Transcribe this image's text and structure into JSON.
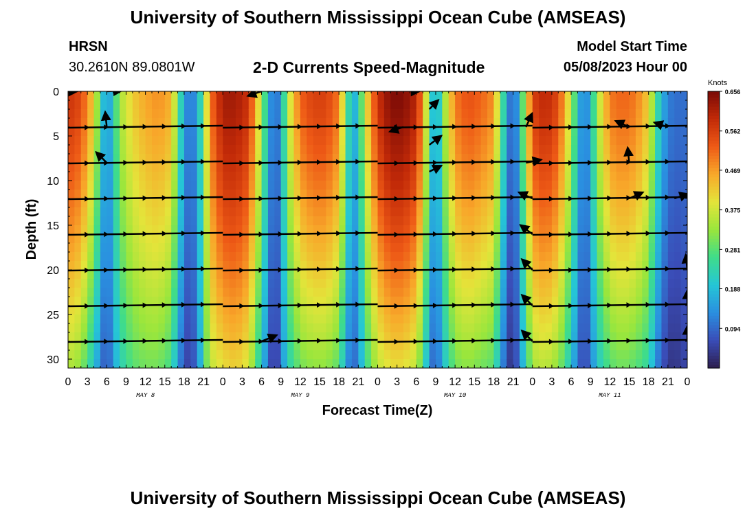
{
  "header": {
    "title": "University of Southern Mississippi Ocean Cube (AMSEAS)",
    "station": "HRSN",
    "coords": "30.2610N  89.0801W",
    "subtitle": "2-D Currents Speed-Magnitude",
    "model_start_label": "Model Start Time",
    "model_start_value": "05/08/2023 Hour 00",
    "footer_title": "University of Southern Mississippi Ocean Cube (AMSEAS)"
  },
  "chart_data": {
    "type": "heatmap",
    "title": "2-D Currents Speed-Magnitude",
    "xlabel": "Forecast Time(Z)",
    "ylabel": "Depth (ft)",
    "xlim": [
      0,
      96
    ],
    "ylim": [
      31,
      0
    ],
    "x_ticks": [
      0,
      3,
      6,
      9,
      12,
      15,
      18,
      21,
      24,
      27,
      30,
      33,
      36,
      39,
      42,
      45,
      48,
      51,
      54,
      57,
      60,
      63,
      66,
      69,
      72,
      75,
      78,
      81,
      84,
      87,
      90,
      93,
      96
    ],
    "x_tick_labels": [
      "0",
      "3",
      "6",
      "9",
      "12",
      "15",
      "18",
      "21",
      "0",
      "3",
      "6",
      "9",
      "12",
      "15",
      "18",
      "21",
      "0",
      "3",
      "6",
      "9",
      "12",
      "15",
      "18",
      "21",
      "0",
      "3",
      "6",
      "9",
      "12",
      "15",
      "18",
      "21",
      "0"
    ],
    "day_labels": [
      {
        "hour": 12,
        "label": "MAY 8"
      },
      {
        "hour": 36,
        "label": "MAY 9"
      },
      {
        "hour": 60,
        "label": "MAY 10"
      },
      {
        "hour": 84,
        "label": "MAY 11"
      }
    ],
    "y_ticks": [
      0,
      5,
      10,
      15,
      20,
      25,
      30
    ],
    "colorbar": {
      "label": "Knots",
      "min": 0.0,
      "max": 0.656,
      "ticks": [
        0.656,
        0.562,
        0.469,
        0.375,
        0.281,
        0.188,
        0.094
      ],
      "colors": [
        "#2d1e4e",
        "#3a4db8",
        "#2a8fe0",
        "#25c6d6",
        "#3fdc8a",
        "#9ae63c",
        "#e4e43a",
        "#f8a82a",
        "#ee5a16",
        "#c22a08",
        "#7a0a06"
      ]
    },
    "speed_profile": {
      "hours": [
        0,
        2,
        4,
        5,
        6,
        7,
        8,
        10,
        12,
        14,
        16,
        17,
        18,
        19,
        20,
        21,
        22,
        24,
        26,
        28,
        30,
        31,
        32,
        33,
        34,
        36,
        38,
        40,
        42,
        43,
        44,
        45,
        46,
        48,
        50,
        52,
        54,
        55,
        56,
        57,
        58,
        60,
        62,
        64,
        66,
        67,
        68,
        69,
        70,
        72,
        74,
        76,
        78,
        79,
        80,
        81,
        82,
        84,
        86,
        88,
        90,
        91,
        92,
        93,
        94,
        96
      ],
      "surface_knots": [
        0.58,
        0.55,
        0.42,
        0.25,
        0.12,
        0.22,
        0.34,
        0.42,
        0.46,
        0.48,
        0.45,
        0.3,
        0.15,
        0.1,
        0.15,
        0.3,
        0.5,
        0.62,
        0.62,
        0.58,
        0.35,
        0.18,
        0.08,
        0.15,
        0.35,
        0.52,
        0.56,
        0.56,
        0.5,
        0.32,
        0.16,
        0.2,
        0.38,
        0.58,
        0.65,
        0.65,
        0.6,
        0.48,
        0.28,
        0.12,
        0.3,
        0.5,
        0.54,
        0.52,
        0.48,
        0.32,
        0.16,
        0.06,
        0.2,
        0.56,
        0.6,
        0.55,
        0.36,
        0.2,
        0.1,
        0.18,
        0.34,
        0.5,
        0.52,
        0.5,
        0.42,
        0.28,
        0.18,
        0.12,
        0.1,
        0.1
      ],
      "bottom_knots": [
        0.35,
        0.32,
        0.2,
        0.12,
        0.06,
        0.14,
        0.22,
        0.28,
        0.3,
        0.3,
        0.26,
        0.15,
        0.06,
        0.05,
        0.1,
        0.24,
        0.36,
        0.4,
        0.42,
        0.38,
        0.2,
        0.1,
        0.02,
        0.1,
        0.22,
        0.3,
        0.32,
        0.32,
        0.28,
        0.16,
        0.08,
        0.12,
        0.24,
        0.36,
        0.4,
        0.4,
        0.36,
        0.26,
        0.14,
        0.06,
        0.18,
        0.3,
        0.32,
        0.3,
        0.28,
        0.16,
        0.06,
        0.02,
        0.12,
        0.34,
        0.36,
        0.32,
        0.2,
        0.1,
        0.05,
        0.1,
        0.2,
        0.28,
        0.3,
        0.28,
        0.24,
        0.14,
        0.08,
        0.04,
        0.03,
        0.06
      ]
    },
    "vector_rows_ft": [
      4,
      8,
      12,
      16,
      20,
      24,
      28
    ],
    "vector_segments": [
      {
        "start": 0,
        "end": 24
      },
      {
        "start": 24,
        "end": 48
      },
      {
        "start": 48,
        "end": 72
      },
      {
        "start": 72,
        "end": 96
      }
    ],
    "vectors": [
      {
        "hour": 0,
        "depth": 0,
        "dx": 0.6,
        "dy": 0.0
      },
      {
        "hour": 6,
        "depth": 0,
        "dx": 1,
        "dy": -0.05
      },
      {
        "hour": 6,
        "depth": 4,
        "dx": -0.1,
        "dy": -1
      },
      {
        "hour": 6,
        "depth": 8,
        "dx": -0.7,
        "dy": -0.7
      },
      {
        "hour": 30,
        "depth": 0,
        "dx": -0.9,
        "dy": 0.3
      },
      {
        "hour": 30,
        "depth": 28,
        "dx": 1,
        "dy": -0.4
      },
      {
        "hour": 52,
        "depth": 4,
        "dx": -0.9,
        "dy": 0.3
      },
      {
        "hour": 54,
        "depth": 0,
        "dx": 0.2,
        "dy": 0
      },
      {
        "hour": 56,
        "depth": 2,
        "dx": 0.6,
        "dy": -0.6
      },
      {
        "hour": 56,
        "depth": 6,
        "dx": 0.8,
        "dy": -0.6
      },
      {
        "hour": 56,
        "depth": 9,
        "dx": 0.8,
        "dy": -0.4
      },
      {
        "hour": 71,
        "depth": 4,
        "dx": 0.4,
        "dy": -0.9
      },
      {
        "hour": 71,
        "depth": 8,
        "dx": 1,
        "dy": -0.2
      },
      {
        "hour": 72,
        "depth": 12,
        "dx": -0.9,
        "dy": -0.4
      },
      {
        "hour": 72,
        "depth": 16,
        "dx": -0.8,
        "dy": -0.6
      },
      {
        "hour": 72,
        "depth": 20,
        "dx": -0.7,
        "dy": -0.7
      },
      {
        "hour": 72,
        "depth": 24,
        "dx": -0.7,
        "dy": -0.7
      },
      {
        "hour": 72,
        "depth": 28,
        "dx": -0.7,
        "dy": -0.7
      },
      {
        "hour": 87,
        "depth": 8,
        "dx": -0.1,
        "dy": -1
      },
      {
        "hour": 87,
        "depth": 12,
        "dx": 0.9,
        "dy": -0.4
      },
      {
        "hour": 87,
        "depth": 4,
        "dx": -0.9,
        "dy": -0.4
      },
      {
        "hour": 96,
        "depth": 16,
        "dx": 0.4,
        "dy": -1
      },
      {
        "hour": 96,
        "depth": 20,
        "dx": -0.1,
        "dy": -1
      },
      {
        "hour": 96,
        "depth": 24,
        "dx": 0,
        "dy": -1
      },
      {
        "hour": 96,
        "depth": 28,
        "dx": 0,
        "dy": -1
      },
      {
        "hour": 94,
        "depth": 12,
        "dx": 0.9,
        "dy": -0.3
      },
      {
        "hour": 93,
        "depth": 4,
        "dx": -0.9,
        "dy": -0.3
      }
    ]
  }
}
